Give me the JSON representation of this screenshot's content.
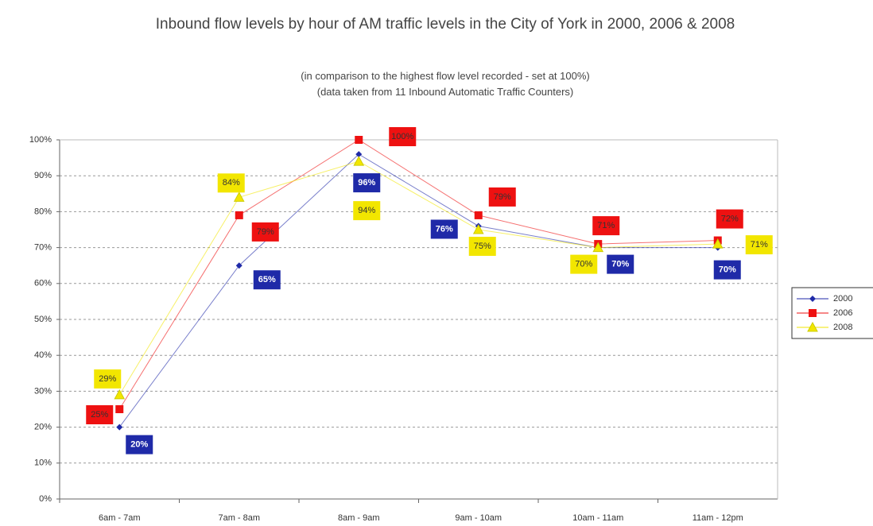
{
  "chart_data": {
    "type": "line",
    "title": "Inbound flow levels by hour of AM traffic levels in the City of York in 2000, 2006 & 2008",
    "subtitle": [
      "(in comparison to the highest flow level recorded - set at 100%)",
      "(data taken from 11 Inbound Automatic Traffic Counters)"
    ],
    "categories": [
      "6am - 7am",
      "7am - 8am",
      "8am - 9am",
      "9am - 10am",
      "10am - 11am",
      "11am - 12pm"
    ],
    "series": [
      {
        "name": "2000",
        "color": "#1f2aa8",
        "marker": "diamond",
        "values": [
          20,
          65,
          96,
          76,
          70,
          70
        ],
        "value_labels": [
          "20%",
          "65%",
          "96%",
          "76%",
          "70%",
          "70%"
        ]
      },
      {
        "name": "2006",
        "color": "#ee1111",
        "marker": "square",
        "values": [
          25,
          79,
          100,
          79,
          71,
          72
        ],
        "value_labels": [
          "25%",
          "79%",
          "100%",
          "79%",
          "71%",
          "72%"
        ]
      },
      {
        "name": "2008",
        "color": "#f2e600",
        "marker": "triangle",
        "values": [
          29,
          84,
          94,
          75,
          70,
          71
        ],
        "value_labels": [
          "29%",
          "84%",
          "94%",
          "75%",
          "70%",
          "71%"
        ]
      }
    ],
    "ylim": [
      0,
      100
    ],
    "yticks": [
      {
        "value": 0,
        "label": "0%"
      },
      {
        "value": 10,
        "label": "10%"
      },
      {
        "value": 20,
        "label": "20%"
      },
      {
        "value": 30,
        "label": "30%"
      },
      {
        "value": 40,
        "label": "40%"
      },
      {
        "value": 50,
        "label": "50%"
      },
      {
        "value": 60,
        "label": "60%"
      },
      {
        "value": 70,
        "label": "70%"
      },
      {
        "value": 80,
        "label": "80%"
      },
      {
        "value": 90,
        "label": "90%"
      },
      {
        "value": 100,
        "label": "100%"
      }
    ],
    "grid": true,
    "legend": "right"
  }
}
